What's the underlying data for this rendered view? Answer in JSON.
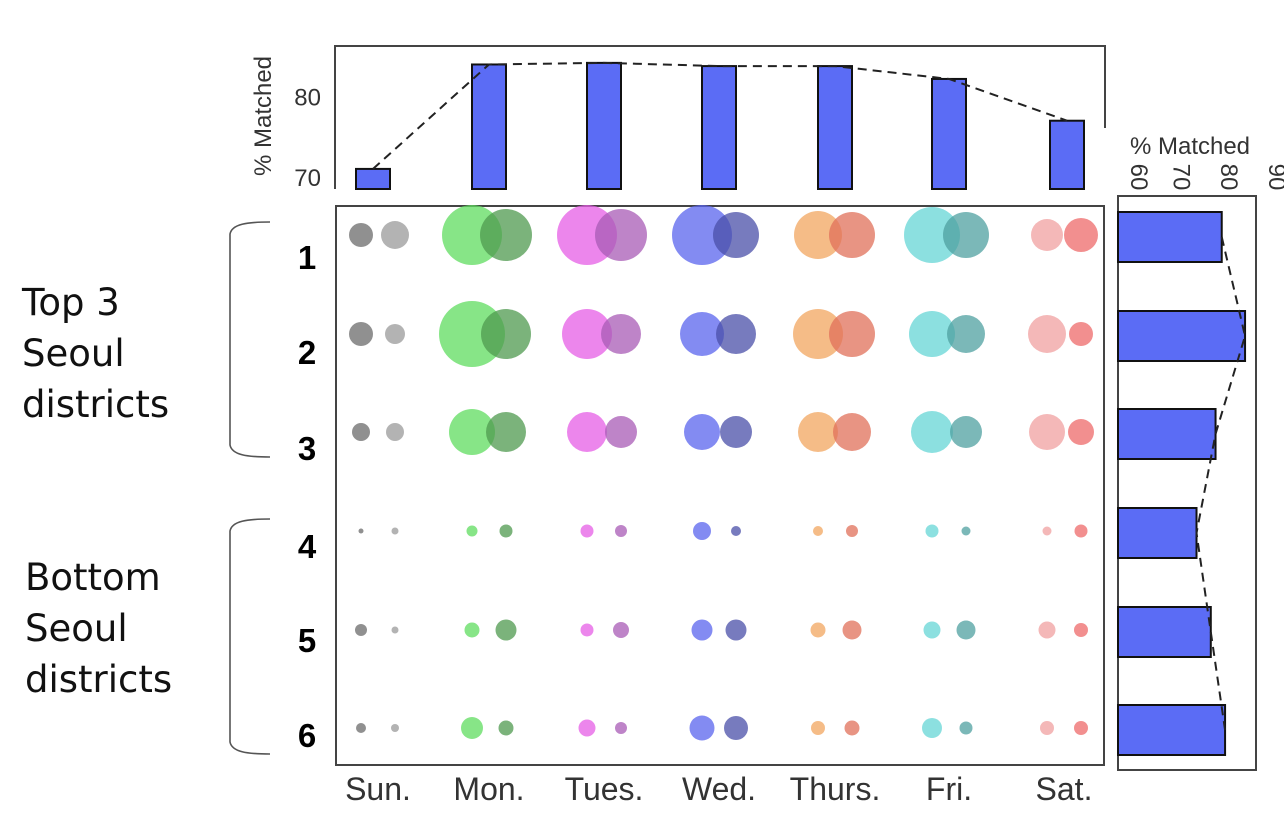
{
  "chart_data": [
    {
      "type": "bar",
      "categories": [
        "Sun.",
        "Mon.",
        "Tues.",
        "Wed.",
        "Thurs.",
        "Fri.",
        "Sat."
      ],
      "values": [
        71,
        84,
        84.2,
        83.8,
        83.8,
        82.2,
        77
      ],
      "ylabel": "% Matched",
      "yticks": [
        "70",
        "80"
      ],
      "ylim": [
        68.5,
        86.3
      ],
      "trend_line": "dashed",
      "color": "#5b6cf5"
    },
    {
      "type": "bubble-matrix",
      "columns": [
        "Sun.",
        "Mon.",
        "Tues.",
        "Wed.",
        "Thurs.",
        "Fri.",
        "Sat."
      ],
      "rows": [
        "1",
        "2",
        "3",
        "4",
        "5",
        "6"
      ],
      "groups": [
        {
          "label": "Top 3\nSeoul\ndistricts",
          "rows": [
            "1",
            "2",
            "3"
          ]
        },
        {
          "label": "Bottom\nSeoul\ndistricts",
          "rows": [
            "4",
            "5",
            "6"
          ]
        }
      ],
      "series_colors": [
        [
          "#6b6b6b",
          "#9a9a9a"
        ],
        [
          "#5fdc5f",
          "#4f9a4f"
        ],
        [
          "#e65ee6",
          "#a85bb5"
        ],
        [
          "#5a64ee",
          "#4a4fa8"
        ],
        [
          "#f2a55f",
          "#e0705a"
        ],
        [
          "#66d6d6",
          "#4fa0a0"
        ],
        [
          "#f0a0a0",
          "#ee6a6a"
        ]
      ],
      "size_note": "relative circle radii, two circles per day per district",
      "sizes": [
        [
          [
            12,
            14
          ],
          [
            30,
            26
          ],
          [
            30,
            26
          ],
          [
            30,
            23
          ],
          [
            24,
            23
          ],
          [
            28,
            23
          ],
          [
            16,
            17
          ]
        ],
        [
          [
            12,
            10
          ],
          [
            33,
            25
          ],
          [
            25,
            20
          ],
          [
            22,
            20
          ],
          [
            25,
            23
          ],
          [
            23,
            19
          ],
          [
            19,
            12
          ]
        ],
        [
          [
            9,
            9
          ],
          [
            23,
            20
          ],
          [
            20,
            16
          ],
          [
            18,
            16
          ],
          [
            20,
            19
          ],
          [
            21,
            16
          ],
          [
            18,
            13
          ]
        ],
        [
          [
            2.5,
            3.5
          ],
          [
            5.5,
            6.5
          ],
          [
            6.5,
            6
          ],
          [
            9,
            5
          ],
          [
            5,
            6
          ],
          [
            6.5,
            4.5
          ],
          [
            4.5,
            6.5
          ]
        ],
        [
          [
            6,
            3.5
          ],
          [
            7.5,
            10.5
          ],
          [
            6.5,
            8
          ],
          [
            10.5,
            10.5
          ],
          [
            7.5,
            9.5
          ],
          [
            8.5,
            9.5
          ],
          [
            8.5,
            7
          ]
        ],
        [
          [
            5,
            4
          ],
          [
            11,
            7.5
          ],
          [
            8.5,
            6
          ],
          [
            12.5,
            12
          ],
          [
            7,
            7.5
          ],
          [
            10,
            6.5
          ],
          [
            7,
            7
          ]
        ]
      ]
    },
    {
      "type": "bar",
      "orientation": "horizontal",
      "categories": [
        "1",
        "2",
        "3",
        "4",
        "5",
        "6"
      ],
      "values": [
        81.8,
        86.7,
        80.5,
        76.5,
        79.5,
        82.5
      ],
      "xlabel": "% Matched",
      "xticks": [
        "60",
        "70",
        "80",
        "90"
      ],
      "xlim": [
        60,
        89
      ],
      "trend_line": "dashed",
      "color": "#5b6cf5"
    }
  ]
}
